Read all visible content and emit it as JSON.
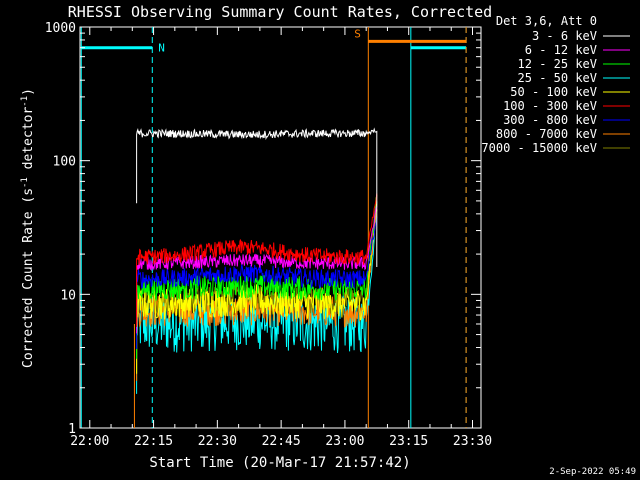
{
  "chart_data": {
    "type": "line",
    "title": "RHESSI Observing Summary Count Rates, Corrected",
    "xlabel": "Start Time (20-Mar-17 21:57:42)",
    "ylabel_main": "Corrected Count Rate (s",
    "ylabel_sup1": "-1",
    "ylabel_mid": " detector",
    "ylabel_sup2": "-1",
    "ylabel_end": ")",
    "yscale": "log",
    "ylim": [
      1,
      1000
    ],
    "xlim_minutes": [
      -2.3,
      92
    ],
    "xtick_labels": [
      "22:00",
      "22:15",
      "22:30",
      "22:45",
      "23:00",
      "23:15",
      "23:30"
    ],
    "xtick_minutes": [
      0,
      15,
      30,
      45,
      60,
      75,
      90
    ],
    "ytick_labels": [
      "1",
      "10",
      "100",
      "1000"
    ],
    "ytick_values": [
      1,
      10,
      100,
      1000
    ],
    "legend_header": "Det 3,6, Att 0",
    "legend_position": "top-right",
    "footer_date": "2-Sep-2022 05:49",
    "series": [
      {
        "name": "3 - 6 keV",
        "color": "#ffffff",
        "level": 160,
        "start": 11,
        "end": 67.5,
        "noise": 0.03,
        "drift": -0.02,
        "final": 170
      },
      {
        "name": "6 - 12 keV",
        "color": "#ff00ff",
        "level": 17,
        "start": 11,
        "end": 67.5,
        "noise": 0.05,
        "drift": 0.05,
        "final": 45
      },
      {
        "name": "12 - 25 keV",
        "color": "#00ff00",
        "level": 11,
        "start": 11,
        "end": 67.5,
        "noise": 0.09,
        "drift": 0.05,
        "final": 55
      },
      {
        "name": "25 - 50 keV",
        "color": "#00ffff",
        "level": 6,
        "start": 11,
        "end": 67.5,
        "noise": 0.22,
        "drift": 0.05,
        "final": 50
      },
      {
        "name": "50 - 100 keV",
        "color": "#ffff00",
        "level": 8.5,
        "start": 11,
        "end": 67.5,
        "noise": 0.12,
        "drift": 0.05,
        "final": 48
      },
      {
        "name": "100 - 300 keV",
        "color": "#ff0000",
        "level": 19,
        "start": 11,
        "end": 67.5,
        "noise": 0.06,
        "drift": 0.18,
        "final": 55
      },
      {
        "name": "300 - 800 keV",
        "color": "#0000ff",
        "level": 13,
        "start": 11,
        "end": 67.5,
        "noise": 0.07,
        "drift": 0.1,
        "final": 38
      },
      {
        "name": "800 - 7000 keV",
        "color": "#ff8000",
        "level": 7.5,
        "start": 11,
        "end": 67.5,
        "noise": 0.12,
        "drift": 0.02,
        "final": 50
      },
      {
        "name": "7000 - 15000 keV",
        "color": "#808000",
        "level": 9,
        "start": 11,
        "end": 67.5,
        "noise": 0.1,
        "drift": 0.05,
        "final": 45
      }
    ],
    "markers": [
      {
        "label": "N",
        "color": "#00ffff",
        "value": 700,
        "solid_at": -2,
        "dashed_at": 14.7,
        "bar_from": -2,
        "bar_to": 14.7
      },
      {
        "label": "",
        "color": "#00ffff",
        "value": 700,
        "solid_at": 75.5,
        "dashed_at": 88.5,
        "bar_from": 75.5,
        "bar_to": 88.5
      },
      {
        "label": "S",
        "color": "#ff8000",
        "value": 780,
        "solid_at": 65.5,
        "dashed_at": 88.5,
        "bar_from": 65.5,
        "bar_to": 88.5
      }
    ],
    "orange_line_at": 10.5
  }
}
